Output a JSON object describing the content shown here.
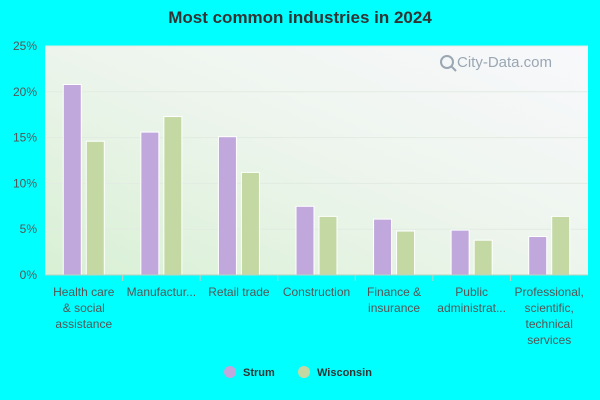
{
  "title": "Most common industries in 2024",
  "watermark": "City-Data.com",
  "colors": {
    "page_background": "#00ffff",
    "series_1": "#c0a8dc",
    "series_2": "#c4d8a4"
  },
  "chart_data": {
    "type": "bar",
    "title": "Most common industries in 2024",
    "xlabel": "",
    "ylabel": "",
    "ylim": [
      0,
      25
    ],
    "yticks": [
      "0%",
      "5%",
      "10%",
      "15%",
      "20%",
      "25%"
    ],
    "grid": true,
    "legend_position": "bottom",
    "categories": [
      [
        "Health care",
        "& social",
        "assistance"
      ],
      [
        "Manufactur..."
      ],
      [
        "Retail trade"
      ],
      [
        "Construction"
      ],
      [
        "Finance &",
        "insurance"
      ],
      [
        "Public",
        "administrat..."
      ],
      [
        "Professional,",
        "scientific,",
        "technical",
        "services"
      ]
    ],
    "series": [
      {
        "name": "Strum",
        "color": "#c0a8dc",
        "values": [
          20.8,
          15.6,
          15.1,
          7.5,
          6.1,
          4.9,
          4.2
        ]
      },
      {
        "name": "Wisconsin",
        "color": "#c4d8a4",
        "values": [
          14.6,
          17.3,
          11.2,
          6.4,
          4.8,
          3.8,
          6.4
        ]
      }
    ]
  }
}
